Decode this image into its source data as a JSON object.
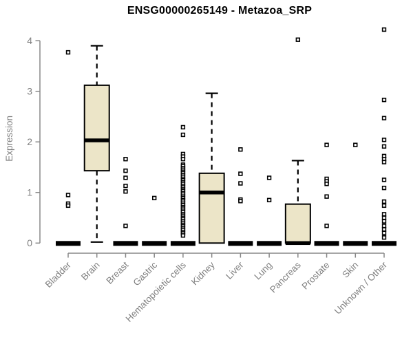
{
  "chart_data": {
    "type": "boxplot",
    "title": "ENSG00000265149 - Metazoa_SRP",
    "ylabel": "Expression",
    "ylim": [
      0,
      4.25
    ],
    "yticks": [
      0,
      1,
      2,
      3,
      4
    ],
    "grid": false,
    "legend": "none",
    "box_fill": "#ECE5C8",
    "box_stroke": "#000000",
    "axis_color": "#888888",
    "label_color": "#808080",
    "categories": [
      "Bladder",
      "Brain",
      "Breast",
      "Gastric",
      "Hematopoietic cells",
      "Kidney",
      "Liver",
      "Lung",
      "Pancreas",
      "Prostate",
      "Skin",
      "Unknown / Other"
    ],
    "series": [
      {
        "name": "Bladder",
        "q1": 0,
        "median": 0,
        "q3": 0,
        "whisker_low": 0,
        "whisker_high": 0,
        "outliers": [
          3.77,
          0.95,
          0.78,
          0.74
        ]
      },
      {
        "name": "Brain",
        "q1": 1.43,
        "median": 2.03,
        "q3": 3.12,
        "whisker_low": 0.02,
        "whisker_high": 3.9,
        "outliers": []
      },
      {
        "name": "Breast",
        "q1": 0,
        "median": 0,
        "q3": 0,
        "whisker_low": 0,
        "whisker_high": 0,
        "outliers": [
          1.66,
          1.43,
          1.29,
          1.13,
          1.02,
          0.34
        ]
      },
      {
        "name": "Gastric",
        "q1": 0,
        "median": 0,
        "q3": 0,
        "whisker_low": 0,
        "whisker_high": 0,
        "outliers": [
          0.89
        ]
      },
      {
        "name": "Hematopoietic cells",
        "q1": 0,
        "median": 0,
        "q3": 0,
        "whisker_low": 0,
        "whisker_high": 0,
        "outliers": [
          2.29,
          2.14,
          1.76,
          1.71,
          1.66,
          1.55,
          1.52,
          1.48,
          1.45,
          1.41,
          1.38,
          1.34,
          1.31,
          1.27,
          1.24,
          1.2,
          1.17,
          1.13,
          1.1,
          1.06,
          1.03,
          0.99,
          0.96,
          0.92,
          0.89,
          0.85,
          0.82,
          0.78,
          0.75,
          0.71,
          0.68,
          0.64,
          0.61,
          0.57,
          0.54,
          0.5,
          0.47,
          0.43,
          0.4,
          0.36,
          0.33,
          0.29,
          0.26,
          0.22,
          0.19,
          0.15
        ]
      },
      {
        "name": "Kidney",
        "q1": 0,
        "median": 1.0,
        "q3": 1.38,
        "whisker_low": 0,
        "whisker_high": 2.96,
        "outliers": []
      },
      {
        "name": "Liver",
        "q1": 0,
        "median": 0,
        "q3": 0,
        "whisker_low": 0,
        "whisker_high": 0,
        "outliers": [
          1.85,
          1.37,
          1.18,
          0.86,
          0.83
        ]
      },
      {
        "name": "Lung",
        "q1": 0,
        "median": 0,
        "q3": 0,
        "whisker_low": 0,
        "whisker_high": 0,
        "outliers": [
          1.29,
          0.85
        ]
      },
      {
        "name": "Pancreas",
        "q1": 0,
        "median": 0,
        "q3": 0.77,
        "whisker_low": 0,
        "whisker_high": 1.63,
        "outliers": [
          4.02
        ]
      },
      {
        "name": "Prostate",
        "q1": 0,
        "median": 0,
        "q3": 0,
        "whisker_low": 0,
        "whisker_high": 0,
        "outliers": [
          1.94,
          1.27,
          1.22,
          1.17,
          0.92,
          0.34
        ]
      },
      {
        "name": "Skin",
        "q1": 0,
        "median": 0,
        "q3": 0,
        "whisker_low": 0,
        "whisker_high": 0,
        "outliers": [
          1.94
        ]
      },
      {
        "name": "Unknown / Other",
        "q1": 0,
        "median": 0,
        "q3": 0,
        "whisker_low": 0,
        "whisker_high": 0,
        "outliers": [
          4.22,
          2.83,
          2.47,
          2.04,
          1.91,
          1.72,
          1.66,
          1.6,
          1.25,
          1.09,
          0.82,
          0.74,
          0.57,
          0.5,
          0.43,
          0.34,
          0.27,
          0.2,
          0.11
        ]
      }
    ]
  }
}
